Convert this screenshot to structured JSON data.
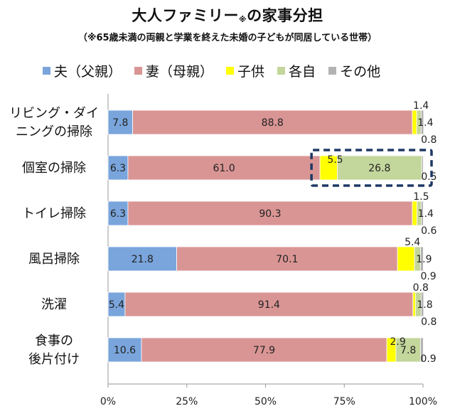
{
  "title_main": "大人ファミリー",
  "title_mark": "※",
  "title_tail": "の家事分担",
  "subtitle": "（※65歳未満の両親と学業を終えた未婚の子どもが同居している世帯）",
  "colors": {
    "father": "#7aa5dc",
    "mother": "#d99594",
    "child": "#ffff00",
    "each": "#c3d69b",
    "other": "#b3b3b3",
    "highlight": "#1f3864"
  },
  "chart_data": {
    "type": "bar",
    "orientation": "horizontal",
    "stacked": true,
    "categories": [
      [
        "リビング・ダイ",
        "ニングの掃除"
      ],
      [
        "個室の掃除"
      ],
      [
        "トイレ掃除"
      ],
      [
        "風呂掃除"
      ],
      [
        "洗濯"
      ],
      [
        "食事の",
        "後片付け"
      ]
    ],
    "series": [
      {
        "name": "夫（父親）",
        "color": "#7aa5dc",
        "values": [
          7.8,
          6.3,
          6.3,
          21.8,
          5.4,
          10.6
        ],
        "labels": [
          "7.8",
          "6.3",
          "6.3",
          "21.8",
          "5.4",
          "10.6"
        ]
      },
      {
        "name": "妻（母親）",
        "color": "#d99594",
        "values": [
          88.8,
          61.0,
          90.3,
          70.1,
          91.4,
          77.9
        ],
        "labels": [
          "88.8",
          "61.0",
          "90.3",
          "70.1",
          "91.4",
          "77.9"
        ]
      },
      {
        "name": "子供",
        "color": "#ffff00",
        "values": [
          1.4,
          5.5,
          1.5,
          5.4,
          0.8,
          2.9
        ],
        "labels": [
          "1.4",
          "5.5",
          "1.5",
          "5.4",
          "0.8",
          "2.9"
        ]
      },
      {
        "name": "各自",
        "color": "#c3d69b",
        "values": [
          1.4,
          26.8,
          1.4,
          1.9,
          1.8,
          7.8
        ],
        "labels": [
          "1.4",
          "26.8",
          "1.4",
          "1.9",
          "1.8",
          "7.8"
        ]
      },
      {
        "name": "その他",
        "color": "#b3b3b3",
        "values": [
          0.8,
          0.5,
          0.6,
          0.9,
          0.8,
          0.9
        ],
        "labels": [
          "0.8",
          "0.5",
          "0.6",
          "0.9",
          "0.8",
          "0.9"
        ]
      }
    ],
    "xticks": [
      "0%",
      "25%",
      "50%",
      "75%",
      "100%"
    ],
    "xlim": [
      0,
      100
    ],
    "legend_position": "top",
    "highlight": {
      "category_index": 1,
      "series": [
        "子供",
        "各自",
        "その他"
      ]
    }
  }
}
